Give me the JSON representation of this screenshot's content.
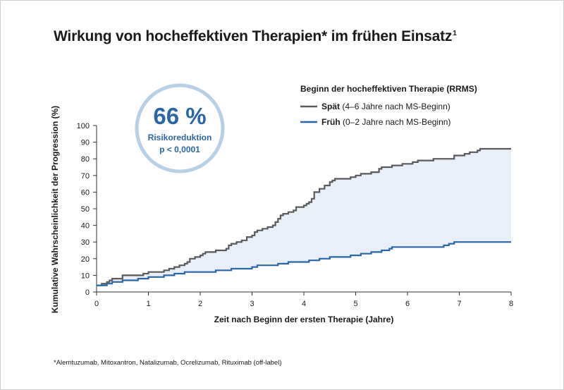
{
  "title": {
    "text": "Wirkung von hocheffektiven Therapien* im frühen Einsatz",
    "footnote_mark": "1"
  },
  "footnote": "*Alemtuzumab, Mitoxantron, Natalizumab, Ocrelizumab, Rituximab (off-label)",
  "badge": {
    "value": "66 %",
    "label": "Risikoreduktion",
    "pvalue": "p < 0,0001"
  },
  "legend": {
    "title": "Beginn der hocheffektiven Therapie (RRMS)",
    "items": [
      {
        "bold": "Spät",
        "rest": " (4–6 Jahre nach MS-Beginn)"
      },
      {
        "bold": "Früh",
        "rest": " (0–2 Jahre nach MS-Beginn)"
      }
    ]
  },
  "colors": {
    "late": "#5a5a5a",
    "early": "#2a66a6",
    "fill": "#e8eff8",
    "badge_ring": "#b8d0e6",
    "axis": "#333333"
  },
  "chart_data": {
    "type": "line",
    "step": true,
    "xlabel": "Zeit nach Beginn der ersten Therapie (Jahre)",
    "ylabel": "Kumulative Wahrscheinlichkeit der Progression (%)",
    "xlim": [
      0,
      8
    ],
    "ylim": [
      0,
      100
    ],
    "xticks": [
      0,
      1,
      2,
      3,
      4,
      5,
      6,
      7,
      8
    ],
    "yticks": [
      0,
      10,
      20,
      30,
      40,
      50,
      60,
      70,
      80,
      90,
      100
    ],
    "legend_position": "top-right",
    "grid": false,
    "shaded_between_series": true,
    "series": [
      {
        "name": "Spät",
        "x": [
          0,
          0.05,
          0.1,
          0.2,
          0.25,
          0.3,
          0.4,
          0.5,
          0.6,
          0.7,
          0.8,
          0.9,
          1.0,
          1.1,
          1.2,
          1.3,
          1.4,
          1.5,
          1.6,
          1.7,
          1.75,
          1.8,
          1.9,
          2.0,
          2.05,
          2.1,
          2.2,
          2.3,
          2.4,
          2.5,
          2.55,
          2.6,
          2.7,
          2.8,
          2.9,
          3.0,
          3.05,
          3.1,
          3.2,
          3.3,
          3.35,
          3.4,
          3.45,
          3.5,
          3.55,
          3.6,
          3.7,
          3.8,
          3.85,
          3.9,
          4.0,
          4.05,
          4.1,
          4.15,
          4.2,
          4.3,
          4.4,
          4.5,
          4.55,
          4.6,
          4.7,
          4.8,
          4.9,
          5.0,
          5.05,
          5.1,
          5.2,
          5.3,
          5.45,
          5.5,
          5.55,
          5.6,
          5.7,
          5.8,
          5.9,
          6.0,
          6.1,
          6.2,
          6.3,
          6.5,
          6.6,
          6.8,
          6.9,
          7.0,
          7.1,
          7.2,
          7.3,
          7.35,
          7.4,
          7.5,
          8.0
        ],
        "y": [
          4,
          4,
          5,
          6,
          7,
          8,
          8,
          10,
          10,
          10,
          10,
          11,
          12,
          12,
          12,
          13,
          14,
          15,
          16,
          17,
          18,
          20,
          21,
          22,
          23,
          24,
          24,
          25,
          25,
          26,
          28,
          29,
          30,
          31,
          33,
          34,
          36,
          37,
          38,
          39,
          39,
          40,
          42,
          44,
          46,
          47,
          48,
          49,
          51,
          51,
          52,
          53,
          54,
          56,
          60,
          62,
          64,
          66,
          67,
          68,
          68,
          68,
          69,
          70,
          70,
          71,
          71,
          72,
          74,
          75,
          75,
          75,
          76,
          76,
          77,
          77,
          78,
          79,
          79,
          80,
          80,
          80,
          82,
          82,
          83,
          84,
          84,
          85,
          86,
          86,
          86
        ]
      },
      {
        "name": "Früh",
        "x": [
          0,
          0.1,
          0.2,
          0.3,
          0.4,
          0.5,
          0.6,
          0.8,
          0.9,
          1.0,
          1.1,
          1.3,
          1.4,
          1.5,
          1.6,
          1.7,
          1.8,
          2.0,
          2.1,
          2.3,
          2.4,
          2.6,
          2.8,
          3.0,
          3.1,
          3.3,
          3.5,
          3.7,
          3.9,
          4.1,
          4.3,
          4.5,
          4.7,
          4.9,
          5.1,
          5.3,
          5.5,
          5.65,
          5.7,
          5.8,
          6.0,
          6.4,
          6.6,
          6.7,
          6.8,
          6.9,
          7.2,
          8.0
        ],
        "y": [
          4,
          4,
          5,
          6,
          6,
          7,
          7,
          8,
          8,
          9,
          9,
          10,
          10,
          11,
          11,
          12,
          12,
          12,
          12,
          13,
          13,
          14,
          14,
          15,
          16,
          16,
          17,
          18,
          18,
          19,
          20,
          21,
          21,
          22,
          23,
          24,
          25,
          26,
          27,
          27,
          27,
          27,
          27,
          28,
          29,
          30,
          30,
          30
        ]
      }
    ]
  }
}
